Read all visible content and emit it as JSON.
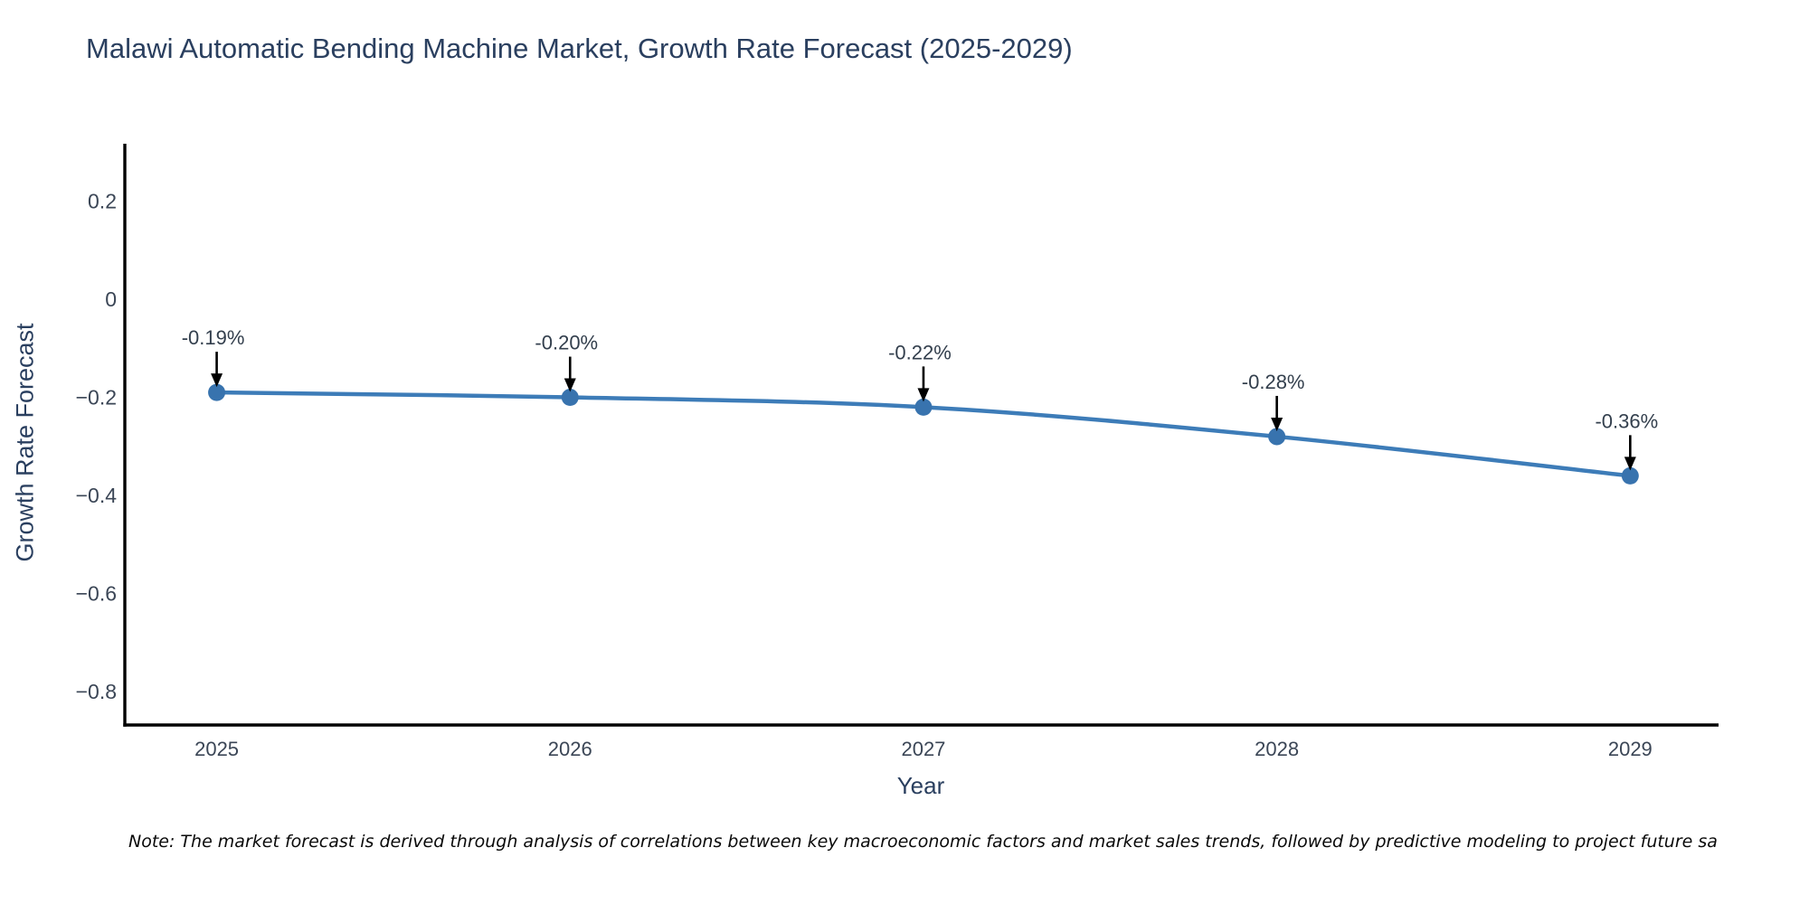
{
  "title": "Malawi Automatic Bending Machine Market, Growth Rate Forecast (2025-2029)",
  "note": "Note: The market forecast is derived through analysis of correlations between key macroeconomic factors and market sales trends, followed by predictive modeling to project future sa",
  "chart_data": {
    "type": "line",
    "title": "Malawi Automatic Bending Machine Market, Growth Rate Forecast (2025-2029)",
    "xlabel": "Year",
    "ylabel": "Growth Rate Forecast",
    "x": [
      2025,
      2026,
      2027,
      2028,
      2029
    ],
    "values": [
      -0.19,
      -0.2,
      -0.22,
      -0.28,
      -0.36
    ],
    "point_labels": [
      "-0.19%",
      "-0.20%",
      "-0.22%",
      "-0.28%",
      "-0.36%"
    ],
    "xticks": [
      "2025",
      "2026",
      "2027",
      "2028",
      "2029"
    ],
    "yticks": [
      {
        "value": 0.2,
        "label": "0.2"
      },
      {
        "value": 0,
        "label": "0"
      },
      {
        "value": -0.2,
        "label": "−0.2"
      },
      {
        "value": -0.4,
        "label": "−0.4"
      },
      {
        "value": -0.6,
        "label": "−0.6"
      },
      {
        "value": -0.8,
        "label": "−0.8"
      }
    ],
    "xlim": [
      2024.74,
      2029.25
    ],
    "ylim": [
      -0.868,
      0.317
    ],
    "grid": false,
    "legend": "none",
    "colors": {
      "line": "#3d7cb8",
      "marker": "#3873ae",
      "axis": "#000000",
      "tick_text": "#3b4656",
      "annotation_text": "#333f4d",
      "annotation_arrow": "#000000",
      "title_text": "#2a3f5f",
      "background": "#ffffff"
    }
  }
}
